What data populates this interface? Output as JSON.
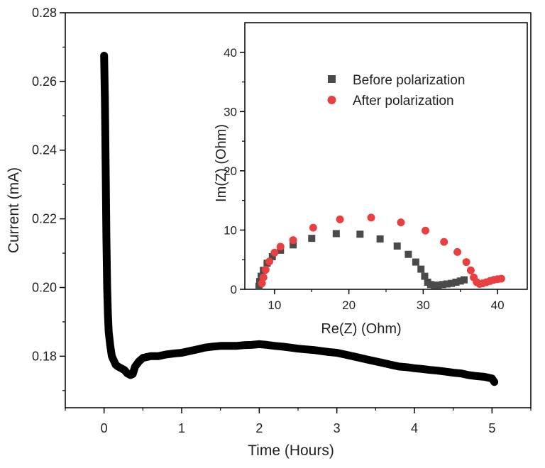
{
  "chart_data": [
    {
      "type": "scatter",
      "role": "main",
      "xlabel": "Time (Hours)",
      "ylabel": "Current (mA)",
      "xlim": [
        -0.5,
        5.5
      ],
      "ylim": [
        0.165,
        0.28
      ],
      "xticks": [
        0,
        1,
        2,
        3,
        4,
        5
      ],
      "xtick_labels": [
        "0",
        "1",
        "2",
        "3",
        "4",
        "5"
      ],
      "yticks": [
        0.18,
        0.2,
        0.22,
        0.24,
        0.26,
        0.28
      ],
      "ytick_labels": [
        "0.18",
        "0.20",
        "0.22",
        "0.24",
        "0.26",
        "0.28"
      ],
      "grid": false,
      "marker_color": "#000000",
      "x": [
        0.0,
        0.01,
        0.02,
        0.03,
        0.04,
        0.05,
        0.06,
        0.08,
        0.1,
        0.12,
        0.15,
        0.18,
        0.22,
        0.26,
        0.3,
        0.34,
        0.37,
        0.4,
        0.45,
        0.5,
        0.6,
        0.7,
        0.8,
        0.9,
        1.0,
        1.1,
        1.2,
        1.3,
        1.4,
        1.5,
        1.6,
        1.7,
        1.8,
        1.9,
        2.0,
        2.1,
        2.2,
        2.3,
        2.4,
        2.5,
        2.6,
        2.7,
        2.8,
        2.9,
        3.0,
        3.1,
        3.2,
        3.3,
        3.4,
        3.5,
        3.6,
        3.7,
        3.8,
        3.9,
        4.0,
        4.1,
        4.2,
        4.3,
        4.4,
        4.5,
        4.6,
        4.7,
        4.8,
        4.9,
        5.0,
        5.03
      ],
      "y": [
        0.2675,
        0.255,
        0.235,
        0.215,
        0.2,
        0.192,
        0.187,
        0.183,
        0.18,
        0.179,
        0.1775,
        0.177,
        0.1765,
        0.176,
        0.175,
        0.1745,
        0.1748,
        0.177,
        0.1785,
        0.1795,
        0.18,
        0.18,
        0.1805,
        0.1808,
        0.181,
        0.1815,
        0.182,
        0.1825,
        0.1828,
        0.183,
        0.183,
        0.183,
        0.1832,
        0.1833,
        0.1835,
        0.1833,
        0.183,
        0.1828,
        0.1825,
        0.1822,
        0.182,
        0.1818,
        0.1815,
        0.1812,
        0.181,
        0.1805,
        0.18,
        0.1795,
        0.179,
        0.1785,
        0.178,
        0.1775,
        0.177,
        0.1768,
        0.1765,
        0.1763,
        0.176,
        0.1758,
        0.1755,
        0.1752,
        0.175,
        0.1745,
        0.1742,
        0.174,
        0.1735,
        0.1725
      ]
    },
    {
      "type": "scatter",
      "role": "inset",
      "xlabel": "Re(Z) (Ohm)",
      "ylabel": "Im(Z) (Ohm)",
      "xlim": [
        6,
        44
      ],
      "ylim": [
        0,
        45
      ],
      "xticks": [
        10,
        20,
        30,
        40
      ],
      "xtick_labels": [
        "10",
        "20",
        "30",
        "40"
      ],
      "yticks": [
        0,
        10,
        20,
        30,
        40
      ],
      "ytick_labels": [
        "0",
        "10",
        "20",
        "30",
        "40"
      ],
      "grid": false,
      "legend": {
        "position": "top-left"
      },
      "series": [
        {
          "name": "Before polarization",
          "marker": "square",
          "color": "#4a4a4a",
          "x": [
            7.9,
            8.0,
            8.2,
            8.5,
            9.0,
            9.7,
            10.8,
            12.5,
            15.0,
            18.3,
            21.5,
            24.2,
            26.5,
            28.0,
            29.0,
            29.7,
            30.2,
            30.6,
            31.0,
            31.5,
            32.0,
            32.6,
            33.2,
            33.8,
            34.4,
            35.0,
            35.5
          ],
          "y": [
            0.5,
            1.3,
            2.2,
            3.2,
            4.4,
            5.5,
            6.6,
            7.5,
            8.6,
            9.4,
            9.3,
            8.5,
            7.3,
            5.9,
            4.6,
            3.4,
            2.2,
            1.2,
            0.8,
            0.7,
            0.7,
            0.8,
            0.9,
            1.0,
            1.2,
            1.4,
            1.6
          ]
        },
        {
          "name": "After polarization",
          "marker": "circle",
          "color": "#e84040",
          "x": [
            8.3,
            8.5,
            8.8,
            9.3,
            10.0,
            10.8,
            12.5,
            15.2,
            18.8,
            23.0,
            27.0,
            30.3,
            32.8,
            34.6,
            35.8,
            36.4,
            36.8,
            37.2,
            37.6,
            38.0,
            38.5,
            39.0,
            39.5,
            40.0,
            40.5
          ],
          "y": [
            1.0,
            2.0,
            3.3,
            4.7,
            6.2,
            7.2,
            8.3,
            10.4,
            11.8,
            12.1,
            11.3,
            9.9,
            8.0,
            6.3,
            4.6,
            3.2,
            2.0,
            1.2,
            0.9,
            1.0,
            1.2,
            1.4,
            1.6,
            1.7,
            1.8
          ]
        }
      ]
    }
  ]
}
